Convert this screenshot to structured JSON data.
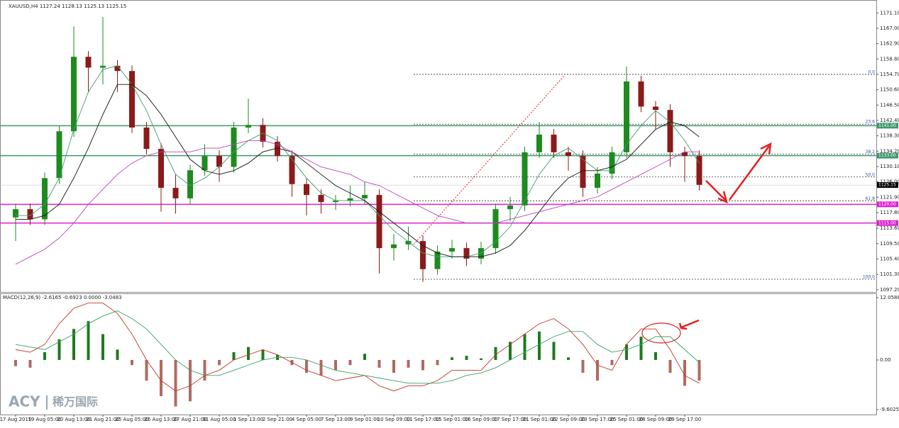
{
  "chart_data": {
    "type": "candlestick",
    "title": "XAUUSD,H4 1127.24 1128.13 1125.13 1125.15",
    "categories": [
      "17 Aug 2015",
      null,
      "19 Aug 05:00",
      null,
      "20 Aug 13:00",
      null,
      "21 Aug 21:00",
      null,
      "25 Aug 05:00",
      null,
      "26 Aug 13:00",
      null,
      "27 Aug 21:00",
      null,
      "31 Aug 05:00",
      null,
      "1 Sep 13:00",
      null,
      "2 Sep 21:00",
      null,
      "4 Sep 05:00",
      null,
      "7 Sep 13:00",
      null,
      "9 Sep 01:00",
      null,
      "10 Sep 09:00",
      null,
      "11 Sep 17:00",
      null,
      "15 Sep 01:00",
      null,
      "16 Sep 09:00",
      null,
      "17 Sep 17:00",
      null,
      "21 Sep 01:00",
      null,
      "22 Sep 09:00",
      null,
      "23 Sep 17:00",
      null,
      "25 Sep 01:00",
      null,
      "28 Sep 09:00",
      null,
      "29 Sep 17:00",
      null
    ],
    "open": [
      1116.5,
      1118.7,
      1116.0,
      1127.0,
      1139.5,
      1159.4,
      1156.5,
      1157.0,
      1155.6,
      1140.5,
      1134.8,
      1124.4,
      1121.6,
      1129.1,
      1132.9,
      1130.0,
      1140.5,
      1141.2,
      1136.7,
      1132.9,
      1125.4,
      1122.5,
      1120.6,
      1121.0,
      1121.6,
      1122.5,
      1108.3,
      1109.3,
      1110.2,
      1102.7,
      1107.4,
      1108.3,
      1105.5,
      1108.3,
      1118.7,
      1119.7,
      1133.9,
      1138.6,
      1133.9,
      1132.9,
      1124.4,
      1128.2,
      1133.9,
      1152.8,
      1146.1,
      1145.2,
      1133.9,
      1132.9
    ],
    "high": [
      1120.2,
      1120.2,
      1128.5,
      1141.0,
      1167.5,
      1160.9,
      1170.0,
      1158.5,
      1157.1,
      1142.0,
      1136.3,
      1128.0,
      1130.6,
      1136.0,
      1134.4,
      1142.0,
      1148.2,
      1143.0,
      1138.2,
      1134.4,
      1126.9,
      1124.0,
      1122.5,
      1125.0,
      1126.0,
      1124.0,
      1112.0,
      1114.0,
      1111.7,
      1109.0,
      1110.5,
      1109.8,
      1110.0,
      1120.2,
      1122.0,
      1135.4,
      1142.0,
      1140.1,
      1135.4,
      1134.4,
      1130.0,
      1135.4,
      1156.8,
      1154.3,
      1147.6,
      1146.7,
      1135.4,
      1134.4
    ],
    "low": [
      1110.2,
      1114.5,
      1114.5,
      1125.5,
      1138.0,
      1150.0,
      1152.0,
      1150.0,
      1139.0,
      1133.3,
      1118.0,
      1117.5,
      1120.1,
      1127.6,
      1126.0,
      1128.5,
      1139.0,
      1135.2,
      1131.4,
      1122.0,
      1117.0,
      1117.5,
      1118.5,
      1119.5,
      1120.1,
      1101.5,
      1105.0,
      1107.8,
      1099.3,
      1101.2,
      1105.5,
      1103.5,
      1104.0,
      1106.8,
      1115.5,
      1118.2,
      1132.4,
      1132.4,
      1129.0,
      1122.0,
      1122.9,
      1126.7,
      1132.4,
      1144.6,
      1140.0,
      1130.0,
      1126.0,
      1123.7
    ],
    "close": [
      1118.7,
      1116.0,
      1127.0,
      1139.5,
      1159.4,
      1156.5,
      1157.0,
      1155.6,
      1140.5,
      1134.8,
      1124.4,
      1121.6,
      1129.1,
      1132.9,
      1130.0,
      1140.5,
      1141.2,
      1136.7,
      1132.9,
      1125.4,
      1122.5,
      1120.6,
      1121.0,
      1121.6,
      1122.5,
      1108.3,
      1109.3,
      1110.2,
      1102.7,
      1107.4,
      1108.3,
      1105.5,
      1108.3,
      1118.7,
      1119.7,
      1133.9,
      1138.6,
      1133.9,
      1132.9,
      1124.4,
      1128.2,
      1133.9,
      1152.8,
      1146.1,
      1145.2,
      1133.9,
      1132.9,
      1125.2
    ],
    "up_color": "#1f8a1f",
    "down_color": "#8b1a1a",
    "series": [
      {
        "color": "#3aa06a",
        "values": [
          1117,
          1117,
          1120,
          1127,
          1140,
          1150,
          1156,
          1157,
          1152,
          1145,
          1136,
          1128,
          1125,
          1127,
          1130,
          1134,
          1137,
          1139,
          1137,
          1132,
          1127,
          1123,
          1121,
          1121,
          1121,
          1117,
          1113,
          1110,
          1107,
          1106,
          1106,
          1106,
          1107,
          1110,
          1114,
          1121,
          1128,
          1133,
          1135,
          1132,
          1129,
          1129,
          1136,
          1141,
          1145,
          1142,
          1137,
          1131
        ]
      },
      {
        "color": "#111111",
        "values": [
          1116,
          1116,
          1117,
          1120,
          1127,
          1135,
          1144,
          1152,
          1152,
          1149,
          1144,
          1138,
          1132,
          1129,
          1128,
          1129,
          1131,
          1134,
          1135,
          1134,
          1131,
          1128,
          1125,
          1123,
          1121,
          1118,
          1115,
          1112,
          1109,
          1107,
          1106,
          1106,
          1106,
          1107,
          1109,
          1113,
          1118,
          1123,
          1127,
          1129,
          1129,
          1130,
          1132,
          1136,
          1140,
          1142,
          1141,
          1138
        ]
      },
      {
        "color": "#c040c0",
        "values": [
          1104,
          1106,
          1108,
          1111,
          1115,
          1120,
          1124,
          1128,
          1131,
          1133,
          1134,
          1134,
          1134,
          1135,
          1135,
          1136,
          1137,
          1137,
          1136,
          1134,
          1132,
          1130,
          1129,
          1128,
          1126,
          1125,
          1123,
          1121,
          1119,
          1117,
          1116,
          1115,
          1115,
          1115,
          1116,
          1117,
          1118,
          1119,
          1120,
          1121,
          1122,
          1124,
          1126,
          1128,
          1130,
          1132,
          1134,
          1134
        ]
      }
    ],
    "ylim": [
      1096.6,
      1173.8
    ],
    "yticks": [
      {
        "value": 1171.1,
        "label": "1171.10"
      },
      {
        "value": 1167.0,
        "label": "1167.00"
      },
      {
        "value": 1162.9,
        "label": "1162.90"
      },
      {
        "value": 1158.8,
        "label": "1158.80"
      },
      {
        "value": 1154.7,
        "label": "1154.70"
      },
      {
        "value": 1150.6,
        "label": "1150.60"
      },
      {
        "value": 1146.5,
        "label": "1146.50"
      },
      {
        "value": 1142.4,
        "label": "1142.40"
      },
      {
        "value": 1138.3,
        "label": "1138.30"
      },
      {
        "value": 1134.2,
        "label": "1134.20"
      },
      {
        "value": 1130.1,
        "label": "1130.10"
      },
      {
        "value": 1126.0,
        "label": "1126.00"
      },
      {
        "value": 1121.9,
        "label": "1121.90"
      },
      {
        "value": 1117.8,
        "label": "1117.80"
      },
      {
        "value": 1113.6,
        "label": "1113.60"
      },
      {
        "value": 1109.5,
        "label": "1109.50"
      },
      {
        "value": 1105.4,
        "label": "1105.40"
      },
      {
        "value": 1101.3,
        "label": "1101.30"
      },
      {
        "value": 1097.2,
        "label": "1097.20"
      }
    ],
    "levels": [
      {
        "value": 1141.0,
        "label": "1141.00",
        "color": "#3a9a6a"
      },
      {
        "value": 1133.0,
        "label": "1133.00",
        "color": "#3a9a6a"
      },
      {
        "value": 1120.0,
        "label": "1120.00",
        "color": "#e020d0"
      },
      {
        "value": 1115.0,
        "label": "1115.00",
        "color": "#e020d0"
      }
    ],
    "fibonacci": [
      {
        "value": 1154.7,
        "label": "0.0"
      },
      {
        "value": 1141.4,
        "label": "23.6"
      },
      {
        "value": 1133.4,
        "label": "38.2"
      },
      {
        "value": 1127.3,
        "label": "50.0"
      },
      {
        "value": 1120.9,
        "label": "61.8"
      },
      {
        "value": 1100.0,
        "label": "100.0"
      }
    ],
    "current_price": {
      "value": 1125.15,
      "label": "1125.15"
    },
    "macd": {
      "label": "MACD(12,26,9) -2.6165 -0.6923 0.0000 -3.0483",
      "histogram": [
        -1.2,
        -1.5,
        1.5,
        4,
        6,
        7.5,
        5,
        2,
        -1,
        -4,
        -7,
        -9,
        -8,
        -4,
        -1,
        1.5,
        2.5,
        2,
        1,
        -1,
        -2.5,
        -3,
        -2,
        -1,
        1.2,
        -1.5,
        -2.5,
        -1.5,
        -2,
        -1,
        0.5,
        0.8,
        0.3,
        2.5,
        3.5,
        5,
        5.5,
        3.5,
        0.5,
        -2.5,
        -4,
        -1,
        3,
        4.5,
        1.5,
        -2.5,
        -5,
        -4
      ],
      "pos_color": "#1f7a1f",
      "neg_color": "#b06a60",
      "main": {
        "color": "#c0392b",
        "values": [
          2,
          1.5,
          3,
          7,
          10,
          11,
          11,
          9,
          5,
          0,
          -4,
          -6,
          -5,
          -3,
          -2,
          0,
          1,
          2,
          1,
          -0.5,
          -2,
          -3,
          -4,
          -3.5,
          -3,
          -5,
          -6,
          -5,
          -5,
          -4,
          -2,
          -2,
          -2,
          1,
          3,
          5,
          7,
          8,
          6,
          3,
          -1,
          -2,
          3,
          6,
          6,
          2,
          -3,
          -4.5
        ]
      },
      "signal": {
        "color": "#3aa06a",
        "values": [
          3,
          2.5,
          2,
          3.5,
          5,
          7,
          8.5,
          9.5,
          8,
          6,
          3,
          0,
          -2,
          -3,
          -3,
          -2,
          -1,
          0,
          0.5,
          0.5,
          0,
          -1,
          -2,
          -2.5,
          -3,
          -3.5,
          -4,
          -4.5,
          -4.5,
          -4.5,
          -4,
          -3,
          -2.5,
          -1.5,
          0,
          1.5,
          3,
          4.5,
          5.5,
          5.5,
          3,
          1.5,
          2,
          3,
          4.5,
          4.5,
          2,
          -0.5
        ]
      },
      "ylim": [
        -10.56,
        12.88
      ],
      "yticks": [
        {
          "value": 12.0588,
          "label": "12.0588"
        },
        {
          "value": 0,
          "label": "0.00"
        },
        {
          "value": -9.6025,
          "label": "-9.6025"
        }
      ]
    },
    "watermark": {
      "brand": "ACY",
      "name": "稀万国际"
    }
  }
}
